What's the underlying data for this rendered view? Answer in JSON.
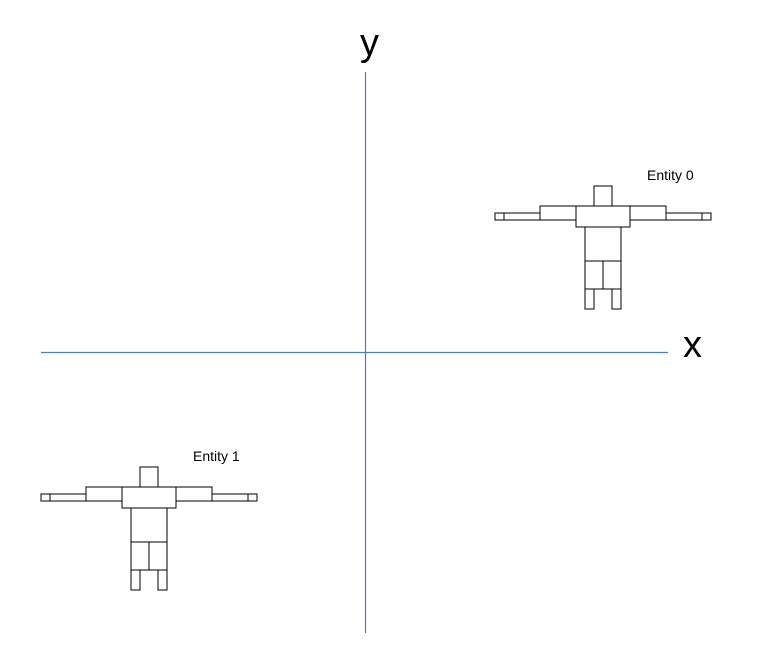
{
  "axes": {
    "x_label": "x",
    "y_label": "y",
    "color": "#4f7fae"
  },
  "entities": [
    {
      "label": "Entity 0"
    },
    {
      "label": "Entity 1"
    }
  ]
}
